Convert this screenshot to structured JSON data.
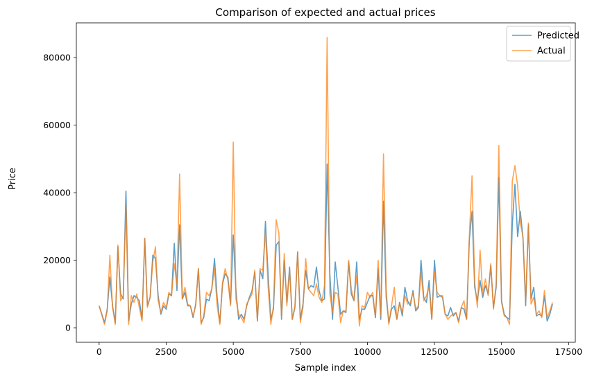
{
  "chart_data": {
    "type": "line",
    "title": "Comparison of expected and actual prices",
    "xlabel": "Sample index",
    "ylabel": "Price",
    "xlim": [
      -850,
      17750
    ],
    "ylim": [
      -4300,
      90300
    ],
    "xticks": [
      0,
      2500,
      5000,
      7500,
      10000,
      12500,
      15000,
      17500
    ],
    "xtick_labels": [
      "0",
      "2500",
      "5000",
      "7500",
      "10000",
      "12500",
      "15000",
      "17500"
    ],
    "yticks": [
      0,
      20000,
      40000,
      60000,
      80000
    ],
    "ytick_labels": [
      "0",
      "20000",
      "40000",
      "60000",
      "80000"
    ],
    "grid": false,
    "legend_position": "top-right",
    "colors": {
      "Predicted": "#1f77b4",
      "Actual": "#ff7f0e"
    },
    "x": [
      0,
      200,
      300,
      400,
      500,
      600,
      700,
      800,
      900,
      1000,
      1100,
      1200,
      1300,
      1400,
      1500,
      1600,
      1700,
      1800,
      1900,
      2000,
      2100,
      2200,
      2300,
      2400,
      2500,
      2600,
      2700,
      2800,
      2900,
      3000,
      3100,
      3200,
      3300,
      3400,
      3500,
      3600,
      3700,
      3800,
      3900,
      4000,
      4100,
      4200,
      4300,
      4400,
      4500,
      4600,
      4700,
      4800,
      4900,
      5000,
      5100,
      5200,
      5300,
      5400,
      5500,
      5600,
      5700,
      5800,
      5900,
      6000,
      6100,
      6200,
      6300,
      6400,
      6500,
      6600,
      6700,
      6800,
      6900,
      7000,
      7100,
      7200,
      7300,
      7400,
      7500,
      7600,
      7700,
      7800,
      7900,
      8000,
      8100,
      8200,
      8300,
      8400,
      8500,
      8600,
      8700,
      8800,
      8900,
      9000,
      9100,
      9200,
      9300,
      9400,
      9500,
      9600,
      9700,
      9800,
      9900,
      10000,
      10100,
      10200,
      10300,
      10400,
      10500,
      10600,
      10700,
      10800,
      10900,
      11000,
      11100,
      11200,
      11300,
      11400,
      11500,
      11600,
      11700,
      11800,
      11900,
      12000,
      12100,
      12200,
      12300,
      12400,
      12500,
      12600,
      12700,
      12800,
      12900,
      13000,
      13100,
      13200,
      13300,
      13400,
      13500,
      13600,
      13700,
      13800,
      13900,
      14000,
      14100,
      14200,
      14300,
      14400,
      14500,
      14600,
      14700,
      14800,
      14900,
      15000,
      15100,
      15200,
      15300,
      15400,
      15500,
      15600,
      15700,
      15800,
      15900,
      16000,
      16100,
      16200,
      16300,
      16400,
      16500,
      16600,
      16700,
      16800,
      16900
    ],
    "series": [
      {
        "name": "Predicted",
        "values": [
          6500,
          1500,
          5500,
          15000,
          6500,
          1500,
          24000,
          10000,
          8500,
          40500,
          2000,
          7000,
          9500,
          9000,
          8000,
          2500,
          26500,
          6500,
          9000,
          21500,
          20500,
          9500,
          4000,
          6500,
          5500,
          10000,
          9500,
          25000,
          11000,
          30500,
          8500,
          10500,
          6500,
          6500,
          3000,
          7000,
          17500,
          1500,
          3000,
          8500,
          8000,
          11500,
          20500,
          9000,
          1500,
          13000,
          16000,
          15000,
          7000,
          27500,
          11000,
          2500,
          4000,
          2500,
          6500,
          9000,
          11000,
          16500,
          2000,
          17000,
          14500,
          31500,
          15500,
          2500,
          5500,
          24500,
          25500,
          2500,
          20000,
          7500,
          18000,
          2500,
          6000,
          22500,
          2500,
          7000,
          17000,
          11500,
          12500,
          12000,
          18000,
          11000,
          8000,
          8500,
          48500,
          16000,
          2500,
          19500,
          12000,
          4000,
          5000,
          4500,
          19500,
          10000,
          8000,
          19500,
          2500,
          5500,
          5500,
          7500,
          9500,
          9500,
          3000,
          17500,
          2500,
          37500,
          9000,
          1500,
          5500,
          6500,
          2500,
          7500,
          3500,
          12000,
          8000,
          6500,
          11000,
          5000,
          6000,
          20000,
          9000,
          7500,
          14000,
          2500,
          20000,
          9000,
          9500,
          9000,
          4000,
          3500,
          6000,
          3500,
          4500,
          2000,
          6000,
          5500,
          2500,
          26000,
          34500,
          12000,
          8000,
          14000,
          9000,
          12500,
          10000,
          18500,
          6000,
          12000,
          44500,
          8000,
          4000,
          3000,
          2500,
          30500,
          42500,
          27000,
          34500,
          26500,
          6500,
          30500,
          8500,
          12000,
          3500,
          4000,
          3500,
          9500,
          2000,
          4000,
          7000
        ]
      },
      {
        "name": "Actual",
        "values": [
          6500,
          1000,
          5000,
          21500,
          6000,
          1000,
          24500,
          8000,
          9500,
          36000,
          1000,
          9500,
          7500,
          10000,
          6000,
          2000,
          26500,
          6000,
          9000,
          19500,
          24000,
          8000,
          4500,
          7500,
          6000,
          10500,
          9500,
          19000,
          12500,
          45500,
          8500,
          12000,
          7000,
          6500,
          3500,
          6500,
          17500,
          1000,
          3500,
          10500,
          9500,
          11500,
          17500,
          6500,
          1000,
          13500,
          17500,
          14000,
          6500,
          55000,
          8500,
          4000,
          3000,
          1500,
          7000,
          8500,
          10000,
          17000,
          2000,
          17500,
          17000,
          28500,
          12000,
          1000,
          6500,
          32000,
          28000,
          3000,
          22000,
          6500,
          17000,
          2500,
          6500,
          22500,
          1500,
          6000,
          20500,
          11500,
          10500,
          9500,
          13000,
          9000,
          7500,
          12500,
          86000,
          10000,
          4500,
          10500,
          10000,
          1500,
          5000,
          5000,
          20000,
          11500,
          8000,
          15500,
          500,
          6500,
          6000,
          10500,
          9000,
          10500,
          3000,
          20000,
          3500,
          51500,
          11000,
          1000,
          6500,
          12000,
          2500,
          7500,
          4500,
          9500,
          7000,
          7500,
          10500,
          5500,
          6500,
          16500,
          8000,
          9500,
          12000,
          2500,
          16500,
          10500,
          9500,
          9500,
          4000,
          2500,
          3500,
          4000,
          4500,
          1500,
          6000,
          8000,
          2500,
          27000,
          45000,
          13500,
          6000,
          23000,
          10000,
          14500,
          9500,
          19000,
          5500,
          13000,
          54000,
          7500,
          3500,
          3000,
          1000,
          43500,
          48000,
          42000,
          31000,
          27000,
          8000,
          31000,
          7000,
          9000,
          4000,
          5000,
          3000,
          11000,
          3000,
          5000,
          7500
        ]
      }
    ]
  }
}
